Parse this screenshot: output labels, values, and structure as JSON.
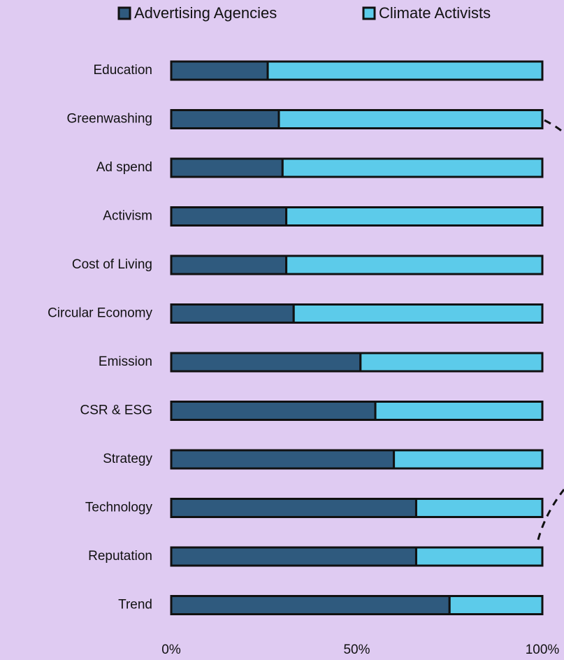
{
  "chart_data": {
    "type": "stacked_barh",
    "categories": [
      "Education",
      "Greenwashing",
      "Ad spend",
      "Activism",
      "Cost of Living",
      "Circular Economy",
      "Emission",
      "CSR & ESG",
      "Strategy",
      "Technology",
      "Reputation",
      "Trend"
    ],
    "series": [
      {
        "name": "Advertising Agencies",
        "color": "#2f5a7e",
        "values": [
          26,
          29,
          30,
          31,
          31,
          33,
          51,
          55,
          60,
          66,
          66,
          75
        ]
      },
      {
        "name": "Climate Activists",
        "color": "#5ccbea",
        "values": [
          74,
          71,
          70,
          69,
          69,
          67,
          49,
          45,
          40,
          34,
          34,
          25
        ]
      }
    ],
    "xlim": [
      0,
      100
    ],
    "xticks": [
      {
        "value": 0,
        "label": "0%"
      },
      {
        "value": 50,
        "label": "50%"
      },
      {
        "value": 100,
        "label": "100%"
      }
    ],
    "legend": "top"
  }
}
